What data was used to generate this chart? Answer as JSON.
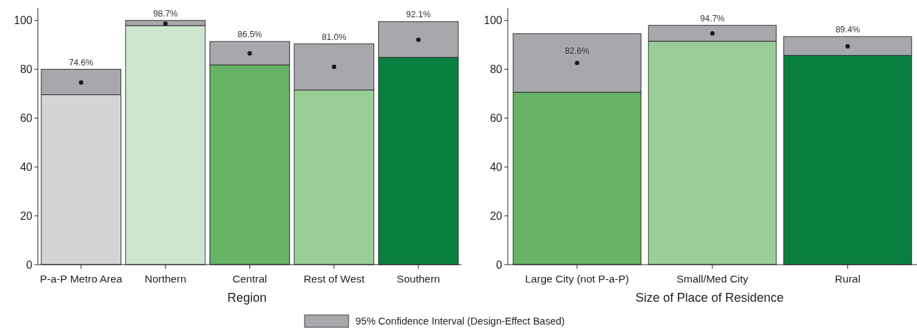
{
  "chart_data": [
    {
      "type": "bar",
      "xlabel": "Region",
      "categories": [
        "P-a-P Metro Area",
        "Northern",
        "Central",
        "Rest of West",
        "Southern"
      ],
      "stacked": true,
      "ylim": [
        0,
        105
      ],
      "yticks": [
        0,
        20,
        40,
        60,
        80,
        100
      ],
      "grid": false,
      "legend": "bottom",
      "series": [
        {
          "colors": [
            "#d3d4d6",
            "#cde6cd",
            "#66b366",
            "#9bcd98",
            "#0a8040"
          ],
          "values": [
            69.6,
            97.9,
            81.8,
            71.5,
            84.9
          ]
        },
        {
          "name": "95% Confidence Interval (Design-Effect Based)",
          "color": "#a7a8ab",
          "values": [
            10.4,
            2.1,
            9.6,
            18.9,
            14.6
          ]
        },
        {
          "type": "scatter",
          "color": "#1a1a1a",
          "marker": "circle",
          "x": [
            "P-a-P Metro Area",
            "Northern",
            "Central",
            "Rest of West",
            "Southern"
          ],
          "values": [
            74.6,
            98.7,
            86.5,
            81.0,
            92.1
          ],
          "value_labels": [
            "74.6%",
            "98.7%",
            "86.5%",
            "81.0%",
            "92.1%"
          ]
        }
      ]
    },
    {
      "type": "bar",
      "xlabel": "Size of Place of Residence",
      "categories": [
        "Large City (not P-a-P)",
        "Small/Med City",
        "Rural"
      ],
      "stacked": true,
      "ylim": [
        0,
        105
      ],
      "yticks": [
        0,
        20,
        40,
        60,
        80,
        100
      ],
      "grid": false,
      "series": [
        {
          "colors": [
            "#66b366",
            "#9bcd98",
            "#0a8040"
          ],
          "values": [
            70.6,
            91.5,
            85.7
          ]
        },
        {
          "color": "#a7a8ab",
          "values": [
            24.0,
            6.5,
            7.7
          ]
        },
        {
          "type": "scatter",
          "color": "#1a1a1a",
          "marker": "circle",
          "x": [
            "Large City (not P-a-P)",
            "Small/Med City",
            "Rural"
          ],
          "values": [
            82.6,
            94.7,
            89.4
          ],
          "value_labels": [
            "82.6%",
            "94.7%",
            "89.4%"
          ]
        }
      ]
    }
  ]
}
